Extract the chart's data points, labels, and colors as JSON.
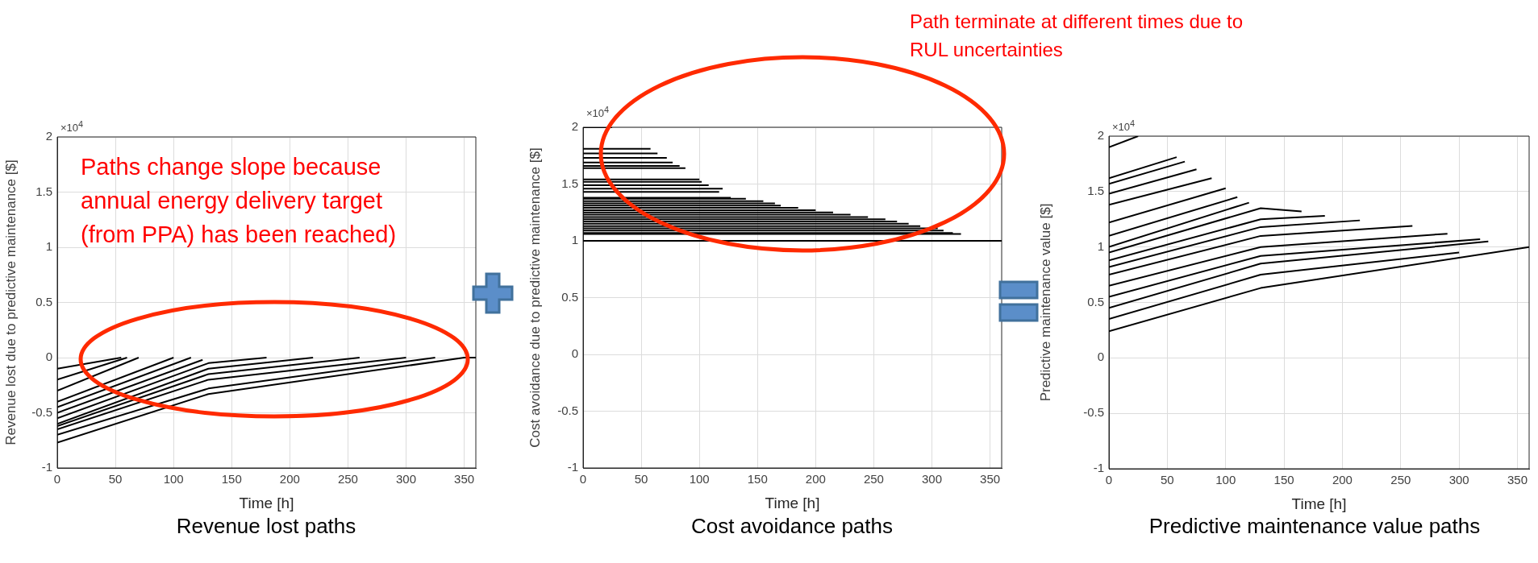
{
  "chart_data": [
    {
      "type": "line",
      "title": "Revenue lost paths",
      "xlabel": "Time [h]",
      "ylabel": "Revenue lost due to predictive maintenance [$]",
      "xlim": [
        0,
        360
      ],
      "ylim": [
        -1,
        2
      ],
      "xticks": [
        0,
        50,
        100,
        150,
        200,
        250,
        300,
        350
      ],
      "yticks": [
        -1,
        -0.5,
        0,
        0.5,
        1,
        1.5,
        2
      ],
      "grid": true,
      "annotations": [
        "×10$^{4}$",
        "Paths change slope because annual energy delivery target (from PPA) has been reached)"
      ],
      "series": [
        {
          "color": "#000000",
          "x": [
            0,
            55
          ],
          "values": [
            -0.1,
            0
          ]
        },
        {
          "color": "#000000",
          "x": [
            0,
            60
          ],
          "values": [
            -0.2,
            0
          ]
        },
        {
          "color": "#000000",
          "x": [
            0,
            70
          ],
          "values": [
            -0.3,
            0
          ]
        },
        {
          "color": "#000000",
          "x": [
            0,
            100
          ],
          "values": [
            -0.4,
            0
          ]
        },
        {
          "color": "#000000",
          "x": [
            0,
            115
          ],
          "values": [
            -0.45,
            0
          ]
        },
        {
          "color": "#000000",
          "x": [
            0,
            125
          ],
          "values": [
            -0.5,
            -0.02
          ]
        },
        {
          "color": "#000000",
          "x": [
            0,
            130,
            180
          ],
          "values": [
            -0.55,
            -0.05,
            0
          ]
        },
        {
          "color": "#000000",
          "x": [
            0,
            130,
            220
          ],
          "values": [
            -0.6,
            -0.1,
            0
          ]
        },
        {
          "color": "#000000",
          "x": [
            0,
            130,
            260
          ],
          "values": [
            -0.62,
            -0.15,
            0
          ]
        },
        {
          "color": "#000000",
          "x": [
            0,
            130,
            300
          ],
          "values": [
            -0.65,
            -0.2,
            0
          ]
        },
        {
          "color": "#000000",
          "x": [
            0,
            130,
            325
          ],
          "values": [
            -0.7,
            -0.28,
            0
          ]
        },
        {
          "color": "#000000",
          "x": [
            0,
            130,
            350,
            360
          ],
          "values": [
            -0.77,
            -0.33,
            0,
            0
          ]
        }
      ]
    },
    {
      "type": "line",
      "title": "Cost avoidance paths",
      "xlabel": "Time [h]",
      "ylabel": "Cost avoidance due to predictive maintenance [$]",
      "xlim": [
        0,
        360
      ],
      "ylim": [
        -1,
        2
      ],
      "xticks": [
        0,
        50,
        100,
        150,
        200,
        250,
        300,
        350
      ],
      "yticks": [
        -1,
        -0.5,
        0,
        0.5,
        1,
        1.5,
        2
      ],
      "grid": true,
      "annotations": [
        "×10$^{4}$",
        "Path terminate at different times due to RUL uncertainties"
      ],
      "series": [
        {
          "color": "#000000",
          "x": [
            0,
            25
          ],
          "values": [
            2,
            2
          ]
        },
        {
          "color": "#000000",
          "x": [
            0,
            58
          ],
          "values": [
            1.81,
            1.81
          ]
        },
        {
          "color": "#000000",
          "x": [
            0,
            64
          ],
          "values": [
            1.77,
            1.77
          ]
        },
        {
          "color": "#000000",
          "x": [
            0,
            72
          ],
          "values": [
            1.73,
            1.73
          ]
        },
        {
          "color": "#000000",
          "x": [
            0,
            77
          ],
          "values": [
            1.69,
            1.69
          ]
        },
        {
          "color": "#000000",
          "x": [
            0,
            83
          ],
          "values": [
            1.66,
            1.66
          ]
        },
        {
          "color": "#000000",
          "x": [
            0,
            88
          ],
          "values": [
            1.64,
            1.64
          ]
        },
        {
          "color": "#000000",
          "x": [
            0,
            100
          ],
          "values": [
            1.54,
            1.54
          ]
        },
        {
          "color": "#000000",
          "x": [
            0,
            102
          ],
          "values": [
            1.52,
            1.52
          ]
        },
        {
          "color": "#000000",
          "x": [
            0,
            108
          ],
          "values": [
            1.49,
            1.49
          ]
        },
        {
          "color": "#000000",
          "x": [
            0,
            120
          ],
          "values": [
            1.46,
            1.46
          ]
        },
        {
          "color": "#000000",
          "x": [
            0,
            117
          ],
          "values": [
            1.43,
            1.43
          ]
        },
        {
          "color": "#000000",
          "x": [
            0,
            127
          ],
          "values": [
            1.38,
            1.38
          ]
        },
        {
          "color": "#000000",
          "x": [
            0,
            140
          ],
          "values": [
            1.37,
            1.37
          ]
        },
        {
          "color": "#000000",
          "x": [
            0,
            155
          ],
          "values": [
            1.35,
            1.35
          ]
        },
        {
          "color": "#000000",
          "x": [
            0,
            165
          ],
          "values": [
            1.33,
            1.33
          ]
        },
        {
          "color": "#000000",
          "x": [
            0,
            170
          ],
          "values": [
            1.31,
            1.31
          ]
        },
        {
          "color": "#000000",
          "x": [
            0,
            185
          ],
          "values": [
            1.29,
            1.29
          ]
        },
        {
          "color": "#000000",
          "x": [
            0,
            200
          ],
          "values": [
            1.27,
            1.27
          ]
        },
        {
          "color": "#000000",
          "x": [
            0,
            215
          ],
          "values": [
            1.25,
            1.25
          ]
        },
        {
          "color": "#000000",
          "x": [
            0,
            230
          ],
          "values": [
            1.23,
            1.23
          ]
        },
        {
          "color": "#000000",
          "x": [
            0,
            245
          ],
          "values": [
            1.21,
            1.21
          ]
        },
        {
          "color": "#000000",
          "x": [
            0,
            260
          ],
          "values": [
            1.19,
            1.19
          ]
        },
        {
          "color": "#000000",
          "x": [
            0,
            270
          ],
          "values": [
            1.17,
            1.17
          ]
        },
        {
          "color": "#000000",
          "x": [
            0,
            280
          ],
          "values": [
            1.15,
            1.15
          ]
        },
        {
          "color": "#000000",
          "x": [
            0,
            290
          ],
          "values": [
            1.13,
            1.13
          ]
        },
        {
          "color": "#000000",
          "x": [
            0,
            305
          ],
          "values": [
            1.11,
            1.11
          ]
        },
        {
          "color": "#000000",
          "x": [
            0,
            310
          ],
          "values": [
            1.09,
            1.09
          ]
        },
        {
          "color": "#000000",
          "x": [
            0,
            318
          ],
          "values": [
            1.07,
            1.07
          ]
        },
        {
          "color": "#000000",
          "x": [
            0,
            325
          ],
          "values": [
            1.06,
            1.06
          ]
        },
        {
          "color": "#000000",
          "x": [
            0,
            360
          ],
          "values": [
            1,
            1
          ]
        }
      ]
    },
    {
      "type": "line",
      "title": "Predictive maintenance value paths",
      "xlabel": "Time [h]",
      "ylabel": "Predictive maintenance value [$]",
      "xlim": [
        0,
        360
      ],
      "ylim": [
        -1,
        2
      ],
      "xticks": [
        0,
        50,
        100,
        150,
        200,
        250,
        300,
        350
      ],
      "yticks": [
        -1,
        -0.5,
        0,
        0.5,
        1,
        1.5,
        2
      ],
      "grid": true,
      "annotations": [
        "×10$^{4}$"
      ],
      "series": [
        {
          "color": "#000000",
          "x": [
            0,
            25
          ],
          "values": [
            1.9,
            2
          ]
        },
        {
          "color": "#000000",
          "x": [
            0,
            58
          ],
          "values": [
            1.62,
            1.81
          ]
        },
        {
          "color": "#000000",
          "x": [
            0,
            65
          ],
          "values": [
            1.57,
            1.77
          ]
        },
        {
          "color": "#000000",
          "x": [
            0,
            75
          ],
          "values": [
            1.48,
            1.7
          ]
        },
        {
          "color": "#000000",
          "x": [
            0,
            88
          ],
          "values": [
            1.38,
            1.62
          ]
        },
        {
          "color": "#000000",
          "x": [
            0,
            100
          ],
          "values": [
            1.22,
            1.53
          ]
        },
        {
          "color": "#000000",
          "x": [
            0,
            110
          ],
          "values": [
            1.1,
            1.45
          ]
        },
        {
          "color": "#000000",
          "x": [
            0,
            120
          ],
          "values": [
            1.0,
            1.4
          ]
        },
        {
          "color": "#000000",
          "x": [
            0,
            130,
            165
          ],
          "values": [
            0.95,
            1.35,
            1.32
          ]
        },
        {
          "color": "#000000",
          "x": [
            0,
            130,
            185
          ],
          "values": [
            0.88,
            1.25,
            1.28
          ]
        },
        {
          "color": "#000000",
          "x": [
            0,
            130,
            215
          ],
          "values": [
            0.82,
            1.18,
            1.24
          ]
        },
        {
          "color": "#000000",
          "x": [
            0,
            130,
            260
          ],
          "values": [
            0.75,
            1.1,
            1.19
          ]
        },
        {
          "color": "#000000",
          "x": [
            0,
            130,
            290
          ],
          "values": [
            0.65,
            1.0,
            1.12
          ]
        },
        {
          "color": "#000000",
          "x": [
            0,
            130,
            318
          ],
          "values": [
            0.55,
            0.92,
            1.07
          ]
        },
        {
          "color": "#000000",
          "x": [
            0,
            130,
            325
          ],
          "values": [
            0.45,
            0.85,
            1.05
          ]
        },
        {
          "color": "#000000",
          "x": [
            0,
            130,
            300
          ],
          "values": [
            0.35,
            0.75,
            0.95
          ]
        },
        {
          "color": "#000000",
          "x": [
            0,
            130,
            360
          ],
          "values": [
            0.24,
            0.63,
            1.0
          ]
        }
      ]
    }
  ]
}
